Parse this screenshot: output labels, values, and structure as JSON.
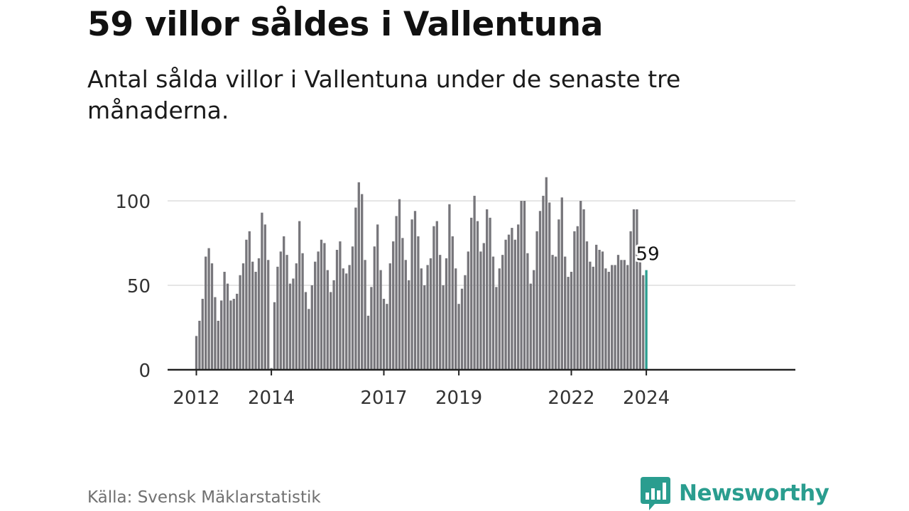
{
  "header": {
    "title": "59 villor såldes i Vallentuna",
    "subtitle": "Antal sålda villor i Vallentuna under de senaste tre månaderna."
  },
  "footer": {
    "source": "Källa: Svensk Mäklarstatistik",
    "brand": "Newsworthy"
  },
  "colors": {
    "bar": "#77767b",
    "highlight": "#2a9d8f",
    "grid": "#dddddd",
    "axis": "#222222",
    "text": "#333333"
  },
  "chart_data": {
    "type": "bar",
    "title": "59 villor såldes i Vallentuna",
    "xlabel": "",
    "ylabel": "",
    "ylim": [
      0,
      115
    ],
    "y_ticks": [
      0,
      50,
      100
    ],
    "x_ticks": [
      "2012",
      "2014",
      "2017",
      "2019",
      "2022",
      "2024"
    ],
    "grid": true,
    "highlight_label": "59",
    "note": "Monthly values, starting January 2012; last value highlighted.",
    "values": [
      20,
      29,
      42,
      67,
      72,
      63,
      43,
      29,
      41,
      58,
      51,
      41,
      42,
      45,
      56,
      63,
      77,
      82,
      64,
      58,
      66,
      93,
      86,
      65,
      1,
      40,
      61,
      70,
      79,
      68,
      51,
      54,
      63,
      88,
      69,
      46,
      36,
      50,
      64,
      70,
      77,
      75,
      59,
      46,
      53,
      71,
      76,
      60,
      57,
      62,
      73,
      96,
      111,
      104,
      65,
      32,
      49,
      73,
      86,
      59,
      42,
      39,
      63,
      76,
      91,
      101,
      78,
      65,
      53,
      89,
      94,
      79,
      60,
      50,
      62,
      66,
      85,
      88,
      68,
      50,
      66,
      98,
      79,
      60,
      39,
      48,
      56,
      70,
      90,
      103,
      88,
      70,
      75,
      95,
      90,
      67,
      49,
      60,
      68,
      77,
      80,
      84,
      77,
      86,
      100,
      100,
      69,
      51,
      59,
      82,
      94,
      103,
      114,
      99,
      68,
      67,
      89,
      102,
      67,
      55,
      58,
      82,
      85,
      100,
      95,
      76,
      64,
      61,
      74,
      71,
      70,
      60,
      58,
      62,
      62,
      68,
      65,
      65,
      62,
      82,
      95,
      95,
      64,
      56,
      59
    ]
  }
}
